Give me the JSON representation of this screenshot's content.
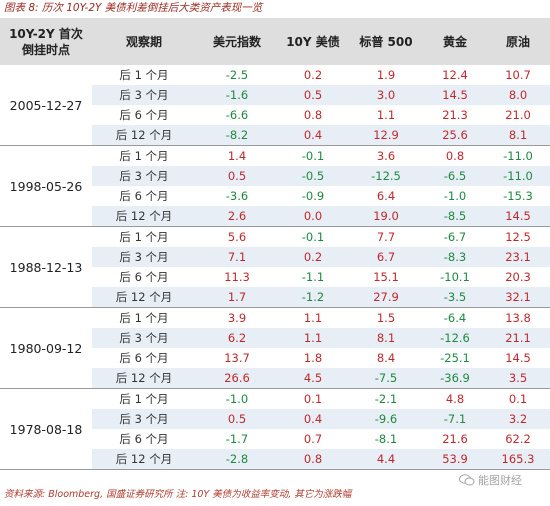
{
  "figure_title": "图表 8: 历次 10Y-2Y 美债利差倒挂后大类资产表现一览",
  "header": {
    "col0_line1": "10Y-2Y 首次",
    "col0_line2": "倒挂时点",
    "period": "观察期",
    "usd": "美元指数",
    "tsy": "10Y 美债",
    "spx": "标普 500",
    "gold": "黄金",
    "oil": "原油"
  },
  "groups": [
    {
      "date": "2005-12-27",
      "rows": [
        {
          "period": "后 1 个月",
          "values": [
            "-2.5",
            "0.2",
            "1.9",
            "12.4",
            "10.7"
          ]
        },
        {
          "period": "后 3 个月",
          "values": [
            "-1.6",
            "0.5",
            "3.0",
            "14.5",
            "8.0"
          ]
        },
        {
          "period": "后 6 个月",
          "values": [
            "-6.6",
            "0.8",
            "1.1",
            "21.3",
            "21.0"
          ]
        },
        {
          "period": "后 12 个月",
          "values": [
            "-8.2",
            "0.4",
            "12.9",
            "25.6",
            "8.1"
          ]
        }
      ]
    },
    {
      "date": "1998-05-26",
      "rows": [
        {
          "period": "后 1 个月",
          "values": [
            "1.4",
            "-0.1",
            "3.6",
            "0.8",
            "-11.0"
          ]
        },
        {
          "period": "后 3 个月",
          "values": [
            "0.5",
            "-0.5",
            "-12.5",
            "-6.5",
            "-11.0"
          ]
        },
        {
          "period": "后 6 个月",
          "values": [
            "-3.6",
            "-0.9",
            "6.4",
            "-1.0",
            "-15.3"
          ]
        },
        {
          "period": "后 12 个月",
          "values": [
            "2.6",
            "0.0",
            "19.0",
            "-8.5",
            "14.5"
          ]
        }
      ]
    },
    {
      "date": "1988-12-13",
      "rows": [
        {
          "period": "后 1 个月",
          "values": [
            "5.6",
            "-0.1",
            "7.7",
            "-6.7",
            "12.5"
          ]
        },
        {
          "period": "后 3 个月",
          "values": [
            "7.1",
            "0.2",
            "6.7",
            "-8.3",
            "23.1"
          ]
        },
        {
          "period": "后 6 个月",
          "values": [
            "11.3",
            "-1.1",
            "15.1",
            "-10.1",
            "20.3"
          ]
        },
        {
          "period": "后 12 个月",
          "values": [
            "1.7",
            "-1.2",
            "27.9",
            "-3.5",
            "32.1"
          ]
        }
      ]
    },
    {
      "date": "1980-09-12",
      "rows": [
        {
          "period": "后 1 个月",
          "values": [
            "3.9",
            "1.1",
            "1.5",
            "-6.4",
            "13.8"
          ]
        },
        {
          "period": "后 3 个月",
          "values": [
            "6.2",
            "1.1",
            "8.1",
            "-12.6",
            "21.1"
          ]
        },
        {
          "period": "后 6 个月",
          "values": [
            "13.7",
            "1.8",
            "8.4",
            "-25.1",
            "14.5"
          ]
        },
        {
          "period": "后 12 个月",
          "values": [
            "26.6",
            "4.5",
            "-7.5",
            "-36.9",
            "3.5"
          ]
        }
      ]
    },
    {
      "date": "1978-08-18",
      "rows": [
        {
          "period": "后 1 个月",
          "values": [
            "-1.0",
            "0.1",
            "-2.1",
            "4.8",
            "0.1"
          ]
        },
        {
          "period": "后 3 个月",
          "values": [
            "0.5",
            "0.4",
            "-9.6",
            "-7.1",
            "3.2"
          ]
        },
        {
          "period": "后 6 个月",
          "values": [
            "-1.7",
            "0.7",
            "-8.1",
            "21.6",
            "62.2"
          ]
        },
        {
          "period": "后 12 个月",
          "values": [
            "-2.8",
            "0.8",
            "4.4",
            "53.9",
            "165.3"
          ]
        }
      ]
    }
  ],
  "source_note": "资料来源: Bloomberg, 国盛证券研究所    注: 10Y 美债为收益率变动, 其它为涨跌幅",
  "watermark": "能图财经",
  "colors": {
    "positive": "#c0292b",
    "negative": "#1d8a3f",
    "stripe": "#e8eef5",
    "header_bg": "#dedede",
    "title": "#9c2a20"
  }
}
